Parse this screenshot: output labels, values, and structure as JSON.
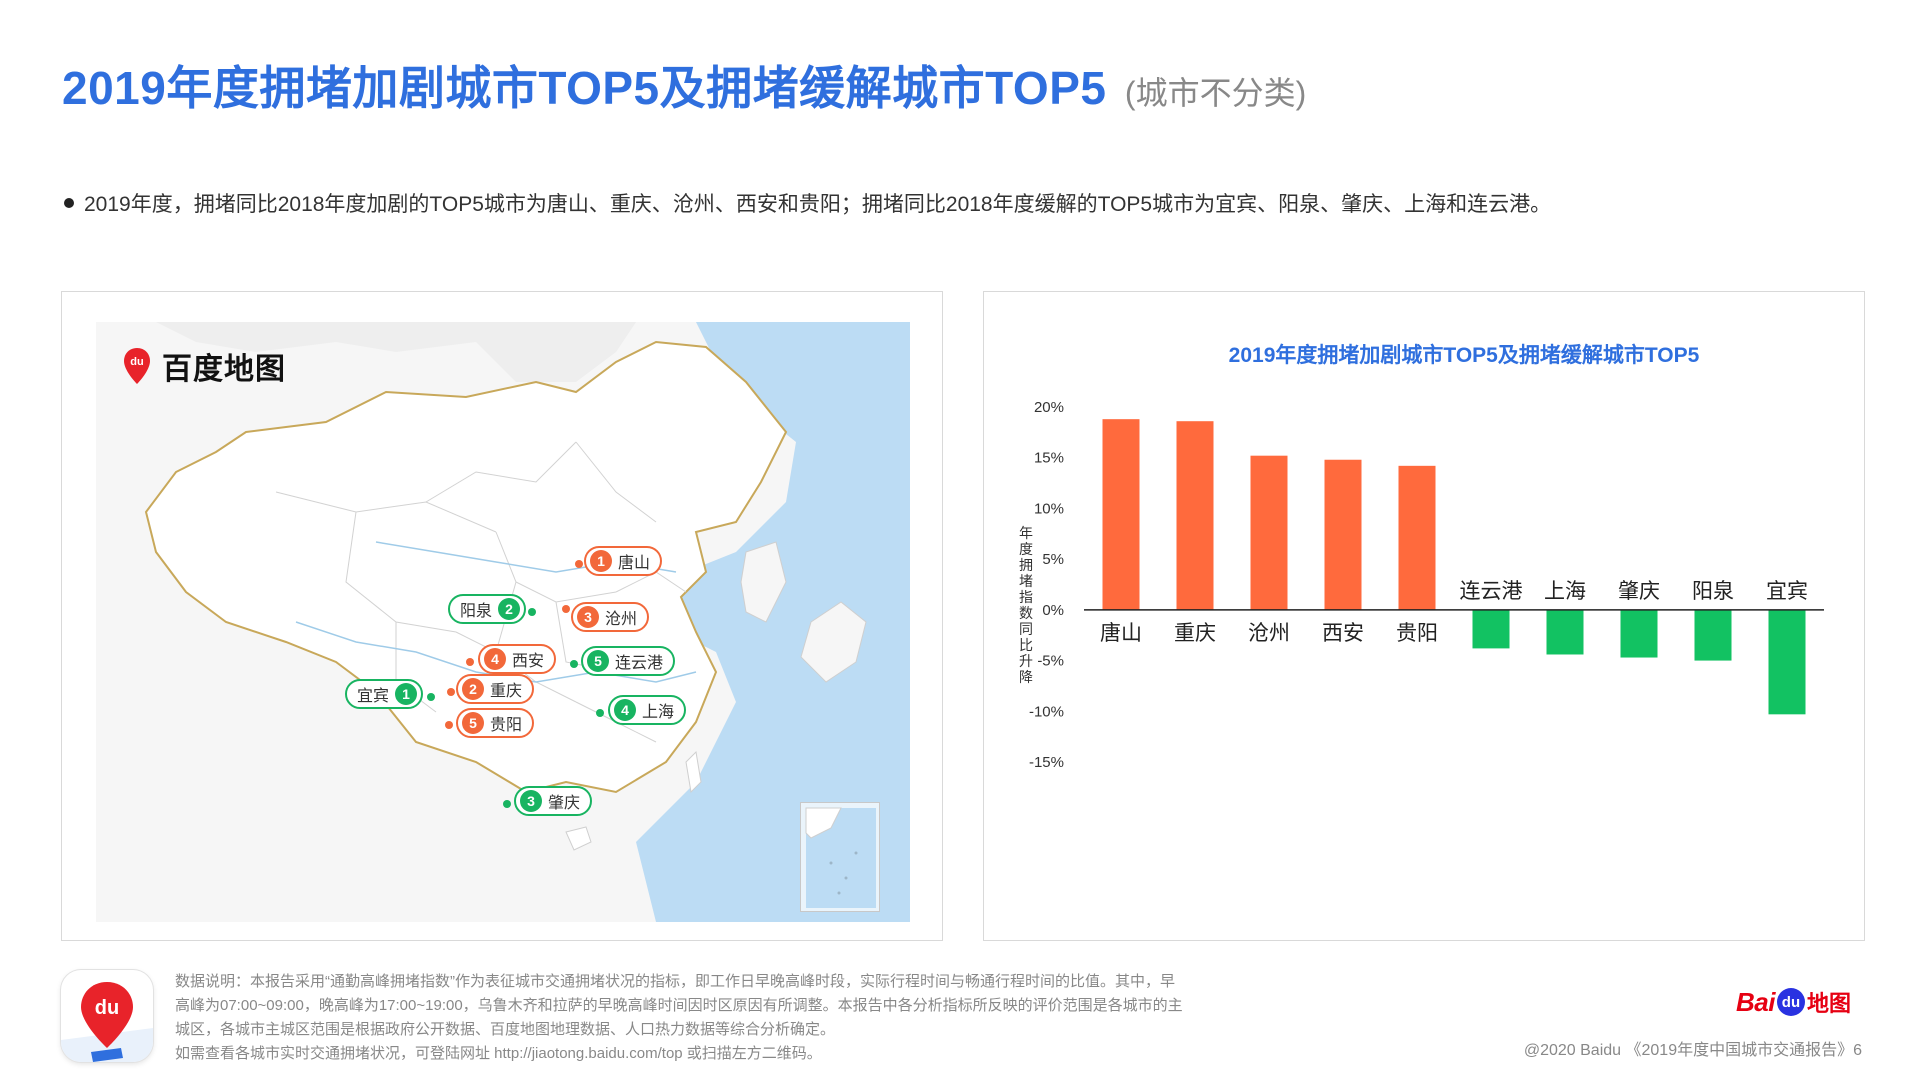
{
  "header": {
    "title": "2019年度拥堵加剧城市TOP5及拥堵缓解城市TOP5",
    "subtitle": "(城市不分类)"
  },
  "summary": "2019年度，拥堵同比2018年度加剧的TOP5城市为唐山、重庆、沧州、西安和贵阳；拥堵同比2018年度缓解的TOP5城市为宜宾、阳泉、肇庆、上海和连云港。",
  "map": {
    "logo_text": "百度地图",
    "logo_pin_text": "du",
    "markers": [
      {
        "rank": "1",
        "city": "唐山",
        "group": "worse"
      },
      {
        "rank": "2",
        "city": "重庆",
        "group": "worse"
      },
      {
        "rank": "3",
        "city": "沧州",
        "group": "worse"
      },
      {
        "rank": "4",
        "city": "西安",
        "group": "worse"
      },
      {
        "rank": "5",
        "city": "贵阳",
        "group": "worse"
      },
      {
        "rank": "1",
        "city": "宜宾",
        "group": "better"
      },
      {
        "rank": "2",
        "city": "阳泉",
        "group": "better"
      },
      {
        "rank": "3",
        "city": "肇庆",
        "group": "better"
      },
      {
        "rank": "4",
        "city": "上海",
        "group": "better"
      },
      {
        "rank": "5",
        "city": "连云港",
        "group": "better"
      }
    ]
  },
  "chart_data": {
    "type": "bar",
    "title": "2019年度拥堵加剧城市TOP5及拥堵缓解城市TOP5",
    "ylabel": "年度拥堵指数同比升降",
    "xlabel": "",
    "categories": [
      "唐山",
      "重庆",
      "沧州",
      "西安",
      "贵阳",
      "连云港",
      "上海",
      "肇庆",
      "阳泉",
      "宜宾"
    ],
    "values": [
      18.8,
      18.6,
      15.2,
      14.8,
      14.2,
      -3.8,
      -4.4,
      -4.7,
      -5.0,
      -10.3
    ],
    "ylim": [
      -15,
      20
    ],
    "yticks": [
      "20%",
      "15%",
      "10%",
      "5%",
      "0%",
      "-5%",
      "-10%",
      "-15%"
    ],
    "ytick_values": [
      20,
      15,
      10,
      5,
      0,
      -5,
      -10,
      -15
    ],
    "grid": false,
    "legend": "none",
    "colors": {
      "positive": "#ff6a3d",
      "negative": "#12c262"
    }
  },
  "footer": {
    "note_lines": [
      "数据说明：本报告采用“通勤高峰拥堵指数”作为表征城市交通拥堵状况的指标，即工作日早晚高峰时段，实际行程时间与畅通行程时间的比值。其中，早",
      "高峰为07:00~09:00，晚高峰为17:00~19:00，乌鲁木齐和拉萨的早晚高峰时间因时区原因有所调整。本报告中各分析指标所反映的评价范围是各城市的主",
      "城区，各城市主城区范围是根据政府公开数据、百度地图地理数据、人口热力数据等综合分析确定。",
      "如需查看各城市实时交通拥堵状况，可登陆网址 http://jiaotong.baidu.com/top 或扫描左方二维码。"
    ],
    "app_icon_text": "du",
    "brand_bai": "Bai",
    "brand_du": "du",
    "brand_ditu": "地图",
    "copyright": "@2020 Baidu 《2019年度中国城市交通报告》6"
  },
  "colors": {
    "title": "#2f6fde",
    "worse": "#f2683a",
    "better": "#18b461",
    "baidu_red": "#e60012",
    "baidu_blue": "#2932e1"
  }
}
